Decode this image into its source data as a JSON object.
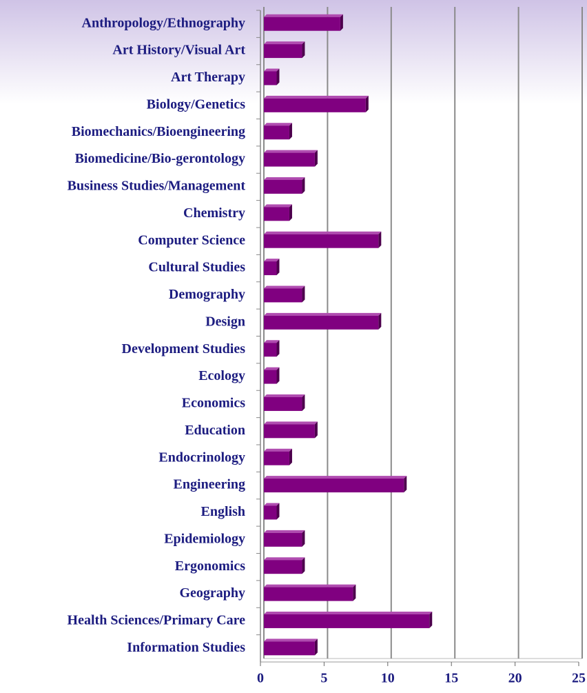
{
  "chart_data": {
    "type": "bar",
    "orientation": "horizontal",
    "categories": [
      "Anthropology/Ethnography",
      "Art History/Visual Art",
      "Art Therapy",
      "Biology/Genetics",
      "Biomechanics/Bioengineering",
      "Biomedicine/Bio-gerontology",
      "Business Studies/Management",
      "Chemistry",
      "Computer Science",
      "Cultural Studies",
      "Demography",
      "Design",
      "Development Studies",
      "Ecology",
      "Economics",
      "Education",
      "Endocrinology",
      "Engineering",
      "English",
      "Epidemiology",
      "Ergonomics",
      "Geography",
      "Health Sciences/Primary Care",
      "Information Studies"
    ],
    "values": [
      6,
      3,
      1,
      8,
      2,
      4,
      3,
      2,
      9,
      1,
      3,
      9,
      1,
      1,
      3,
      4,
      2,
      11,
      1,
      3,
      3,
      7,
      13,
      4
    ],
    "color": "#800080",
    "xlim": [
      0,
      25
    ],
    "xticks": [
      0,
      5,
      10,
      15,
      20,
      25
    ],
    "grid": true
  }
}
